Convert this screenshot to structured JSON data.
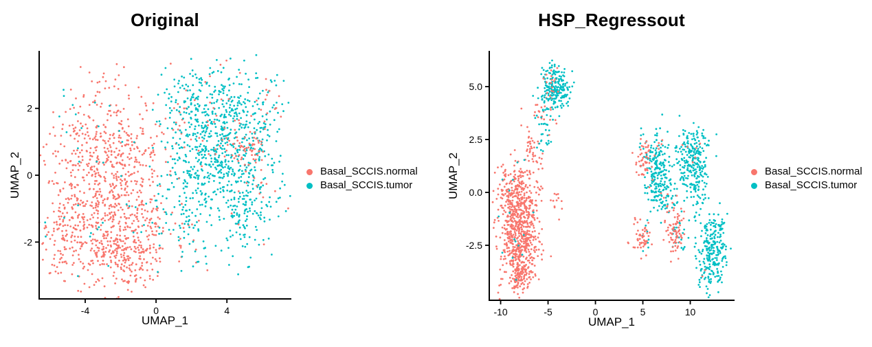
{
  "style": {
    "background": "#FFFFFF",
    "axis_color": "#000000",
    "text_color": "#000000"
  },
  "chart_data": [
    {
      "type": "scatter",
      "title": "Original",
      "xlabel": "UMAP_1",
      "ylabel": "UMAP_2",
      "xlim": [
        -6.6,
        7.6
      ],
      "ylim": [
        -3.7,
        3.7
      ],
      "xticks": [
        -4,
        0,
        4
      ],
      "xtick_labels": [
        "-4",
        "0",
        "4"
      ],
      "yticks": [
        2,
        0,
        -2
      ],
      "ytick_labels": [
        "2",
        "0",
        "-2"
      ],
      "grid": false,
      "legend_position": "right",
      "point_radius": 1.4,
      "series": [
        {
          "name": "Basal_SCCIS.normal",
          "color": "#F8766D"
        },
        {
          "name": "Basal_SCCIS.tumor",
          "color": "#00BFC4"
        }
      ],
      "clusters": [
        {
          "series": 0,
          "n": 230,
          "cx": -4.3,
          "cy": -0.5,
          "sx": 1.0,
          "sy": 1.15
        },
        {
          "series": 0,
          "n": 200,
          "cx": -2.6,
          "cy": 1.1,
          "sx": 1.15,
          "sy": 0.95
        },
        {
          "series": 0,
          "n": 230,
          "cx": -2.7,
          "cy": -1.6,
          "sx": 1.15,
          "sy": 0.85
        },
        {
          "series": 0,
          "n": 150,
          "cx": -1.4,
          "cy": -2.5,
          "sx": 0.95,
          "sy": 0.5
        },
        {
          "series": 0,
          "n": 150,
          "cx": -1.4,
          "cy": -0.1,
          "sx": 0.95,
          "sy": 1.0
        },
        {
          "series": 0,
          "n": 70,
          "cx": -5.3,
          "cy": -2.1,
          "sx": 0.6,
          "sy": 0.65
        },
        {
          "series": 0,
          "n": 60,
          "cx": -0.1,
          "cy": -1.2,
          "sx": 0.8,
          "sy": 0.8
        },
        {
          "series": 0,
          "n": 25,
          "cx": 0.8,
          "cy": 1.4,
          "sx": 0.8,
          "sy": 0.9
        },
        {
          "series": 0,
          "n": 12,
          "cx": 1.5,
          "cy": -2.1,
          "sx": 0.8,
          "sy": 0.5
        },
        {
          "series": 1,
          "n": 260,
          "cx": 3.6,
          "cy": 1.6,
          "sx": 1.1,
          "sy": 0.85
        },
        {
          "series": 1,
          "n": 200,
          "cx": 2.6,
          "cy": 0.3,
          "sx": 1.0,
          "sy": 0.95
        },
        {
          "series": 1,
          "n": 170,
          "cx": 5.0,
          "cy": -0.9,
          "sx": 0.9,
          "sy": 0.75
        },
        {
          "series": 1,
          "n": 120,
          "cx": 4.7,
          "cy": 0.6,
          "sx": 0.9,
          "sy": 0.7
        },
        {
          "series": 1,
          "n": 90,
          "cx": 1.7,
          "cy": 2.0,
          "sx": 0.8,
          "sy": 0.65
        },
        {
          "series": 1,
          "n": 60,
          "cx": 5.9,
          "cy": 1.9,
          "sx": 0.75,
          "sy": 0.6
        },
        {
          "series": 1,
          "n": 40,
          "cx": 0.9,
          "cy": -0.9,
          "sx": 0.7,
          "sy": 0.7
        },
        {
          "series": 1,
          "n": 25,
          "cx": 1.8,
          "cy": -1.9,
          "sx": 0.6,
          "sy": 0.6
        },
        {
          "series": 1,
          "n": 28,
          "cx": -2.6,
          "cy": -1.4,
          "sx": 1.9,
          "sy": 1.0
        },
        {
          "series": 1,
          "n": 14,
          "cx": -3.4,
          "cy": 1.6,
          "sx": 1.5,
          "sy": 0.8
        },
        {
          "series": 1,
          "n": 10,
          "cx": 6.9,
          "cy": 0.3,
          "sx": 0.35,
          "sy": 0.8
        },
        {
          "series": 0,
          "n": 55,
          "cx": 5.2,
          "cy": 0.8,
          "sx": 0.6,
          "sy": 0.3
        },
        {
          "series": 0,
          "n": 22,
          "cx": 3.1,
          "cy": 0.95,
          "sx": 1.0,
          "sy": 0.45
        },
        {
          "series": 0,
          "n": 18,
          "cx": 3.6,
          "cy": 2.2,
          "sx": 1.3,
          "sy": 0.6
        },
        {
          "series": 0,
          "n": 14,
          "cx": 5.8,
          "cy": -0.6,
          "sx": 0.7,
          "sy": 0.6
        },
        {
          "series": 0,
          "n": 10,
          "cx": 6.4,
          "cy": 2.0,
          "sx": 0.5,
          "sy": 0.4
        }
      ]
    },
    {
      "type": "scatter",
      "title": "HSP_Regressout",
      "xlabel": "UMAP_1",
      "ylabel": "UMAP_2",
      "xlim": [
        -11.2,
        14.6
      ],
      "ylim": [
        -5.1,
        6.66
      ],
      "xticks": [
        -10,
        -5,
        0,
        5,
        10
      ],
      "xtick_labels": [
        "-10",
        "-5",
        "0",
        "5",
        "10"
      ],
      "yticks": [
        5.0,
        2.5,
        0.0,
        -2.5
      ],
      "ytick_labels": [
        "5.0",
        "2.5",
        "0.0",
        "-2.5"
      ],
      "grid": false,
      "legend_position": "right",
      "point_radius": 1.4,
      "series": [
        {
          "name": "Basal_SCCIS.normal",
          "color": "#F8766D"
        },
        {
          "name": "Basal_SCCIS.tumor",
          "color": "#00BFC4"
        }
      ],
      "clusters": [
        {
          "series": 0,
          "n": 300,
          "cx": -8.3,
          "cy": -1.4,
          "sx": 1.05,
          "sy": 1.1
        },
        {
          "series": 0,
          "n": 220,
          "cx": -7.7,
          "cy": -2.7,
          "sx": 0.9,
          "sy": 0.8
        },
        {
          "series": 0,
          "n": 180,
          "cx": -8.6,
          "cy": -0.1,
          "sx": 0.9,
          "sy": 0.85
        },
        {
          "series": 0,
          "n": 90,
          "cx": -7.9,
          "cy": -3.9,
          "sx": 0.55,
          "sy": 0.45
        },
        {
          "series": 0,
          "n": 60,
          "cx": -7.0,
          "cy": -0.7,
          "sx": 0.7,
          "sy": 0.8
        },
        {
          "series": 0,
          "n": 45,
          "cx": -6.6,
          "cy": 2.0,
          "sx": 0.55,
          "sy": 0.95
        },
        {
          "series": 0,
          "n": 20,
          "cx": -5.5,
          "cy": 3.9,
          "sx": 0.5,
          "sy": 0.55
        },
        {
          "series": 0,
          "n": 12,
          "cx": -4.0,
          "cy": -0.2,
          "sx": 0.45,
          "sy": 0.4
        },
        {
          "series": 0,
          "n": 4,
          "cx": -10.2,
          "cy": -4.4,
          "sx": 0.35,
          "sy": 0.25
        },
        {
          "series": 1,
          "n": 130,
          "cx": -4.4,
          "cy": 5.1,
          "sx": 0.65,
          "sy": 0.45
        },
        {
          "series": 1,
          "n": 60,
          "cx": -3.5,
          "cy": 4.7,
          "sx": 0.5,
          "sy": 0.45
        },
        {
          "series": 1,
          "n": 35,
          "cx": -5.0,
          "cy": 4.4,
          "sx": 0.45,
          "sy": 0.5
        },
        {
          "series": 1,
          "n": 30,
          "cx": -5.5,
          "cy": 3.1,
          "sx": 0.5,
          "sy": 0.8
        },
        {
          "series": 1,
          "n": 16,
          "cx": -8.2,
          "cy": -1.6,
          "sx": 1.2,
          "sy": 1.3
        },
        {
          "series": 1,
          "n": 170,
          "cx": 6.3,
          "cy": 1.2,
          "sx": 0.75,
          "sy": 0.8
        },
        {
          "series": 1,
          "n": 60,
          "cx": 6.9,
          "cy": 0.0,
          "sx": 0.5,
          "sy": 0.65
        },
        {
          "series": 1,
          "n": 230,
          "cx": 10.2,
          "cy": 1.6,
          "sx": 0.85,
          "sy": 0.75
        },
        {
          "series": 1,
          "n": 40,
          "cx": 10.9,
          "cy": 0.1,
          "sx": 0.5,
          "sy": 0.7
        },
        {
          "series": 1,
          "n": 220,
          "cx": 12.3,
          "cy": -3.0,
          "sx": 0.8,
          "sy": 0.9
        },
        {
          "series": 1,
          "n": 35,
          "cx": 12.9,
          "cy": -1.7,
          "sx": 0.5,
          "sy": 0.5
        },
        {
          "series": 1,
          "n": 25,
          "cx": 7.9,
          "cy": -0.6,
          "sx": 0.7,
          "sy": 0.7
        },
        {
          "series": 1,
          "n": 20,
          "cx": 8.6,
          "cy": -2.3,
          "sx": 0.6,
          "sy": 0.5
        },
        {
          "series": 1,
          "n": 8,
          "cx": 5.3,
          "cy": -2.0,
          "sx": 0.5,
          "sy": 0.45
        },
        {
          "series": 1,
          "n": 6,
          "cx": 8.2,
          "cy": 1.3,
          "sx": 0.5,
          "sy": 0.8
        },
        {
          "series": 0,
          "n": 16,
          "cx": -4.4,
          "cy": 5.0,
          "sx": 0.5,
          "sy": 0.4
        },
        {
          "series": 0,
          "n": 45,
          "cx": 5.1,
          "cy": 1.3,
          "sx": 0.45,
          "sy": 0.5
        },
        {
          "series": 0,
          "n": 12,
          "cx": 6.1,
          "cy": 2.1,
          "sx": 0.6,
          "sy": 0.3
        },
        {
          "series": 0,
          "n": 70,
          "cx": 8.4,
          "cy": -2.0,
          "sx": 0.55,
          "sy": 0.5
        },
        {
          "series": 0,
          "n": 50,
          "cx": 4.9,
          "cy": -2.1,
          "sx": 0.5,
          "sy": 0.4
        },
        {
          "series": 0,
          "n": 10,
          "cx": 7.8,
          "cy": -0.5,
          "sx": 0.5,
          "sy": 0.6
        },
        {
          "series": 0,
          "n": 6,
          "cx": 10.5,
          "cy": 1.9,
          "sx": 0.5,
          "sy": 0.4
        },
        {
          "series": 0,
          "n": 2,
          "cx": 11.8,
          "cy": -4.0,
          "sx": 0.2,
          "sy": 0.2
        }
      ]
    }
  ]
}
